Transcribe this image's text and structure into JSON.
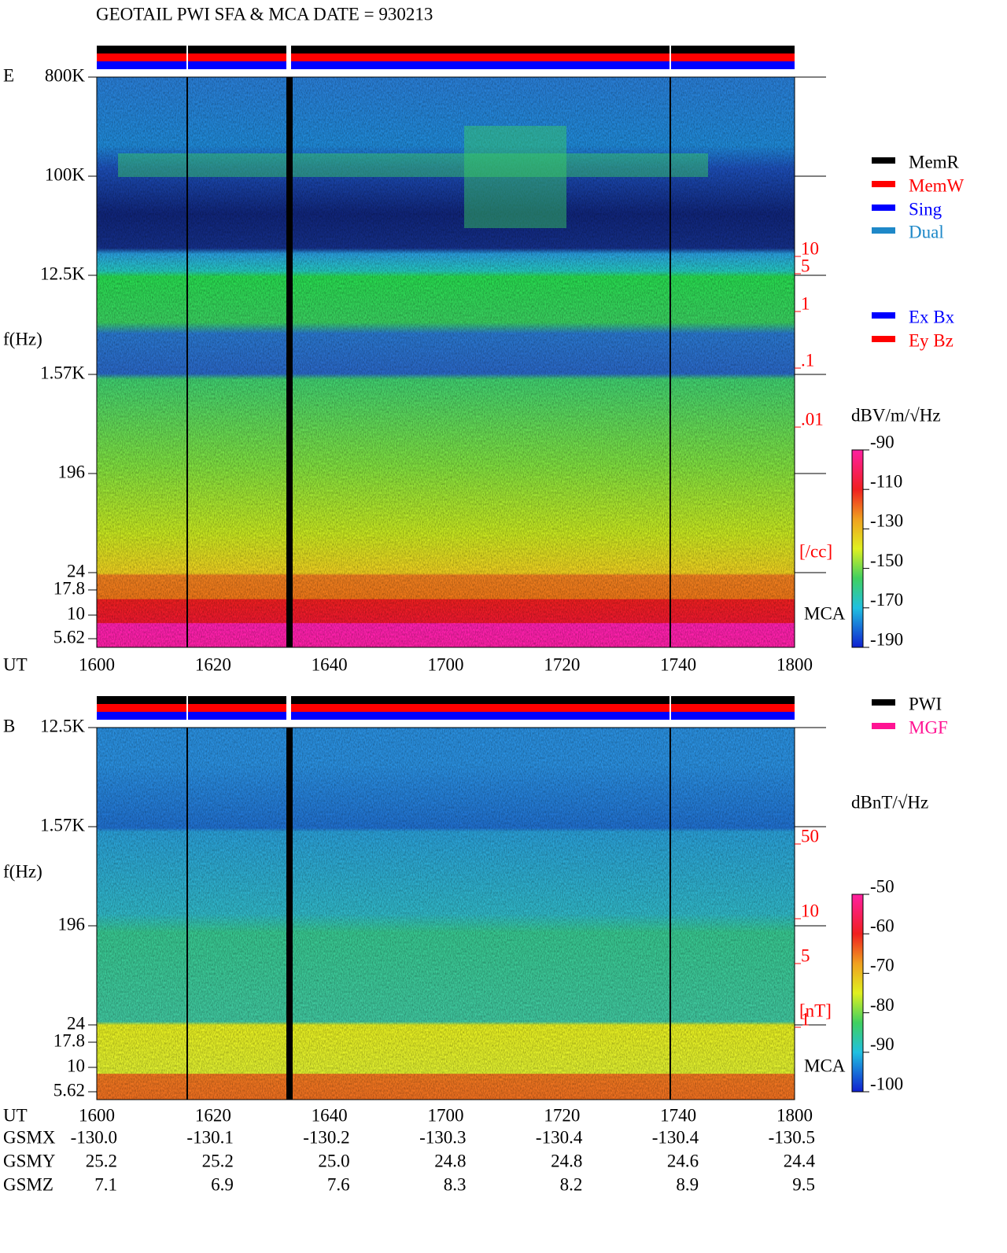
{
  "header": {
    "title": "GEOTAIL  PWI SFA & MCA   DATE = 930213"
  },
  "panels": [
    {
      "label": "E",
      "freq_ticks": [
        "800K",
        "100K",
        "12.5K",
        "1.57K",
        "196",
        "24",
        "17.8",
        "10",
        "5.62"
      ],
      "y_axis_label": "f(Hz)",
      "x_axis_label": "UT",
      "time_ticks": [
        "1600",
        "1620",
        "1640",
        "1700",
        "1720",
        "1740",
        "1800"
      ],
      "right_ticks": [
        "10",
        "5",
        "1",
        ".1",
        ".01"
      ],
      "right_unit": "[/cc]",
      "mca_label": "MCA",
      "colorbar": {
        "unit": "dBV/m/√Hz",
        "ticks": [
          "-90",
          "-110",
          "-130",
          "-150",
          "-170",
          "-190"
        ]
      }
    },
    {
      "label": "B",
      "freq_ticks": [
        "12.5K",
        "1.57K",
        "196",
        "24",
        "17.8",
        "10",
        "5.62"
      ],
      "y_axis_label": "f(Hz)",
      "x_axis_label": "UT",
      "time_ticks": [
        "1600",
        "1620",
        "1640",
        "1700",
        "1720",
        "1740",
        "1800"
      ],
      "right_ticks": [
        "50",
        "10",
        "5",
        "1"
      ],
      "right_unit": "[nT]",
      "mca_label": "MCA",
      "colorbar": {
        "unit": "dBnT/√Hz",
        "ticks": [
          "-50",
          "-60",
          "-70",
          "-80",
          "-90",
          "-100"
        ]
      }
    }
  ],
  "legends": {
    "mode": [
      "MemR",
      "MemW",
      "Sing",
      "Dual"
    ],
    "channels": [
      "Ex Bx",
      "Ey Bz"
    ],
    "sources": [
      "PWI",
      "MGF"
    ]
  },
  "orbit": [
    {
      "label": "GSMX",
      "values": [
        "-130.0",
        "-130.1",
        "-130.2",
        "-130.3",
        "-130.4",
        "-130.4",
        "-130.5"
      ]
    },
    {
      "label": "GSMY",
      "values": [
        "25.2",
        "25.2",
        "25.0",
        "24.8",
        "24.8",
        "24.6",
        "24.4"
      ]
    },
    {
      "label": "GSMZ",
      "values": [
        "7.1",
        "6.9",
        "7.6",
        "8.3",
        "8.2",
        "8.9",
        "9.5"
      ]
    }
  ]
}
